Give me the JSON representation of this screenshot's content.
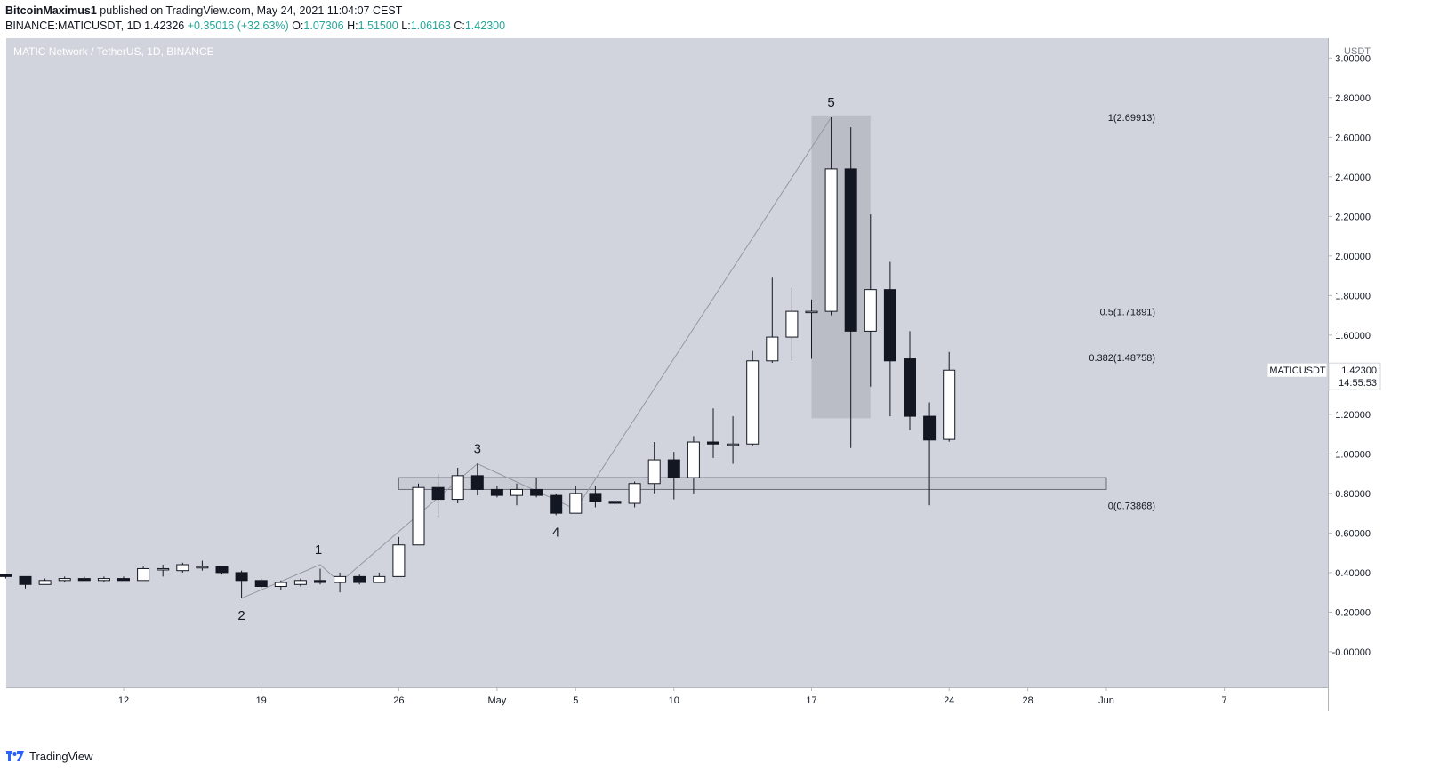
{
  "header": {
    "author": "BitcoinMaximus1",
    "published_text": "published on TradingView.com, May 24, 2021 11:04:07 CEST",
    "symbol_line": "BINANCE:MATICUSDT, 1D",
    "last": "1.42326",
    "change": "+0.35016 (+32.63%)",
    "o_label": "O:",
    "o": "1.07306",
    "h_label": "H:",
    "h": "1.51500",
    "l_label": "L:",
    "l": "1.06163",
    "c_label": "C:",
    "c": "1.42300"
  },
  "footer": {
    "brand": "TradingView"
  },
  "colors": {
    "background": "#d1d4dc",
    "bull": "#ffffff",
    "bear": "#131722",
    "accent": "#26a69a"
  },
  "chart_data": {
    "type": "candlestick",
    "title": "MATIC Network / TetherUS, 1D, BINANCE",
    "currency": "USDT",
    "ylim": [
      -0.18,
      3.1
    ],
    "y_ticks": [
      "3.00000",
      "2.80000",
      "2.60000",
      "2.40000",
      "2.20000",
      "2.00000",
      "1.80000",
      "1.60000",
      "1.40000",
      "1.20000",
      "1.00000",
      "0.80000",
      "0.60000",
      "0.40000",
      "0.20000",
      "-0.00000"
    ],
    "y_tick_values": [
      3.0,
      2.8,
      2.6,
      2.4,
      2.2,
      2.0,
      1.8,
      1.6,
      1.4,
      1.2,
      1.0,
      0.8,
      0.6,
      0.4,
      0.2,
      0.0
    ],
    "x_ticks": [
      {
        "label": "12",
        "date": "2021-04-12"
      },
      {
        "label": "19",
        "date": "2021-04-19"
      },
      {
        "label": "26",
        "date": "2021-04-26"
      },
      {
        "label": "May",
        "date": "2021-05-01"
      },
      {
        "label": "5",
        "date": "2021-05-05"
      },
      {
        "label": "10",
        "date": "2021-05-10"
      },
      {
        "label": "17",
        "date": "2021-05-17"
      },
      {
        "label": "24",
        "date": "2021-05-24"
      },
      {
        "label": "28",
        "date": "2021-05-28"
      },
      {
        "label": "Jun",
        "date": "2021-06-01"
      },
      {
        "label": "7",
        "date": "2021-06-07"
      }
    ],
    "candles": [
      {
        "date": "2021-04-06",
        "o": 0.39,
        "h": 0.39,
        "l": 0.37,
        "c": 0.38
      },
      {
        "date": "2021-04-07",
        "o": 0.38,
        "h": 0.38,
        "l": 0.32,
        "c": 0.34
      },
      {
        "date": "2021-04-08",
        "o": 0.34,
        "h": 0.37,
        "l": 0.34,
        "c": 0.36
      },
      {
        "date": "2021-04-09",
        "o": 0.36,
        "h": 0.38,
        "l": 0.35,
        "c": 0.37
      },
      {
        "date": "2021-04-10",
        "o": 0.37,
        "h": 0.38,
        "l": 0.36,
        "c": 0.36
      },
      {
        "date": "2021-04-11",
        "o": 0.36,
        "h": 0.38,
        "l": 0.35,
        "c": 0.37
      },
      {
        "date": "2021-04-12",
        "o": 0.37,
        "h": 0.38,
        "l": 0.36,
        "c": 0.36
      },
      {
        "date": "2021-04-13",
        "o": 0.36,
        "h": 0.43,
        "l": 0.36,
        "c": 0.42
      },
      {
        "date": "2021-04-14",
        "o": 0.42,
        "h": 0.44,
        "l": 0.38,
        "c": 0.42
      },
      {
        "date": "2021-04-15",
        "o": 0.41,
        "h": 0.45,
        "l": 0.4,
        "c": 0.44
      },
      {
        "date": "2021-04-16",
        "o": 0.43,
        "h": 0.46,
        "l": 0.41,
        "c": 0.43
      },
      {
        "date": "2021-04-17",
        "o": 0.43,
        "h": 0.43,
        "l": 0.39,
        "c": 0.4
      },
      {
        "date": "2021-04-18",
        "o": 0.4,
        "h": 0.41,
        "l": 0.27,
        "c": 0.36
      },
      {
        "date": "2021-04-19",
        "o": 0.36,
        "h": 0.37,
        "l": 0.32,
        "c": 0.33
      },
      {
        "date": "2021-04-20",
        "o": 0.33,
        "h": 0.36,
        "l": 0.31,
        "c": 0.35
      },
      {
        "date": "2021-04-21",
        "o": 0.34,
        "h": 0.37,
        "l": 0.33,
        "c": 0.36
      },
      {
        "date": "2021-04-22",
        "o": 0.36,
        "h": 0.42,
        "l": 0.34,
        "c": 0.35
      },
      {
        "date": "2021-04-23",
        "o": 0.35,
        "h": 0.4,
        "l": 0.3,
        "c": 0.38
      },
      {
        "date": "2021-04-24",
        "o": 0.38,
        "h": 0.39,
        "l": 0.34,
        "c": 0.35
      },
      {
        "date": "2021-04-25",
        "o": 0.35,
        "h": 0.4,
        "l": 0.35,
        "c": 0.38
      },
      {
        "date": "2021-04-26",
        "o": 0.38,
        "h": 0.58,
        "l": 0.38,
        "c": 0.54
      },
      {
        "date": "2021-04-27",
        "o": 0.54,
        "h": 0.85,
        "l": 0.54,
        "c": 0.83
      },
      {
        "date": "2021-04-28",
        "o": 0.83,
        "h": 0.9,
        "l": 0.68,
        "c": 0.77
      },
      {
        "date": "2021-04-29",
        "o": 0.77,
        "h": 0.93,
        "l": 0.75,
        "c": 0.89
      },
      {
        "date": "2021-04-30",
        "o": 0.89,
        "h": 0.95,
        "l": 0.79,
        "c": 0.82
      },
      {
        "date": "2021-05-01",
        "o": 0.82,
        "h": 0.84,
        "l": 0.78,
        "c": 0.79
      },
      {
        "date": "2021-05-02",
        "o": 0.79,
        "h": 0.85,
        "l": 0.74,
        "c": 0.82
      },
      {
        "date": "2021-05-03",
        "o": 0.82,
        "h": 0.88,
        "l": 0.78,
        "c": 0.79
      },
      {
        "date": "2021-05-04",
        "o": 0.79,
        "h": 0.8,
        "l": 0.69,
        "c": 0.7
      },
      {
        "date": "2021-05-05",
        "o": 0.7,
        "h": 0.84,
        "l": 0.7,
        "c": 0.8
      },
      {
        "date": "2021-05-06",
        "o": 0.8,
        "h": 0.84,
        "l": 0.73,
        "c": 0.76
      },
      {
        "date": "2021-05-07",
        "o": 0.76,
        "h": 0.77,
        "l": 0.73,
        "c": 0.75
      },
      {
        "date": "2021-05-08",
        "o": 0.75,
        "h": 0.86,
        "l": 0.73,
        "c": 0.85
      },
      {
        "date": "2021-05-09",
        "o": 0.85,
        "h": 1.06,
        "l": 0.8,
        "c": 0.97
      },
      {
        "date": "2021-05-10",
        "o": 0.97,
        "h": 1.01,
        "l": 0.77,
        "c": 0.88
      },
      {
        "date": "2021-05-11",
        "o": 0.88,
        "h": 1.09,
        "l": 0.8,
        "c": 1.06
      },
      {
        "date": "2021-05-12",
        "o": 1.06,
        "h": 1.23,
        "l": 0.98,
        "c": 1.05
      },
      {
        "date": "2021-05-13",
        "o": 1.05,
        "h": 1.19,
        "l": 0.95,
        "c": 1.05
      },
      {
        "date": "2021-05-14",
        "o": 1.05,
        "h": 1.52,
        "l": 1.04,
        "c": 1.47
      },
      {
        "date": "2021-05-15",
        "o": 1.47,
        "h": 1.89,
        "l": 1.46,
        "c": 1.59
      },
      {
        "date": "2021-05-16",
        "o": 1.59,
        "h": 1.84,
        "l": 1.47,
        "c": 1.72
      },
      {
        "date": "2021-05-17",
        "o": 1.72,
        "h": 1.78,
        "l": 1.48,
        "c": 1.72
      },
      {
        "date": "2021-05-18",
        "o": 1.72,
        "h": 2.7,
        "l": 1.7,
        "c": 2.44
      },
      {
        "date": "2021-05-19",
        "o": 2.44,
        "h": 2.65,
        "l": 1.03,
        "c": 1.62
      },
      {
        "date": "2021-05-20",
        "o": 1.62,
        "h": 2.21,
        "l": 1.34,
        "c": 1.83
      },
      {
        "date": "2021-05-21",
        "o": 1.83,
        "h": 1.97,
        "l": 1.19,
        "c": 1.47
      },
      {
        "date": "2021-05-22",
        "o": 1.48,
        "h": 1.62,
        "l": 1.12,
        "c": 1.19
      },
      {
        "date": "2021-05-23",
        "o": 1.19,
        "h": 1.26,
        "l": 0.74,
        "c": 1.07
      },
      {
        "date": "2021-05-24",
        "o": 1.07306,
        "h": 1.515,
        "l": 1.06163,
        "c": 1.423
      }
    ],
    "wave_labels": [
      {
        "label": "1",
        "date": "2021-04-22",
        "y": 0.44
      },
      {
        "label": "2",
        "date": "2021-04-18",
        "y": 0.27
      },
      {
        "label": "3",
        "date": "2021-04-30",
        "y": 0.95
      },
      {
        "label": "4",
        "date": "2021-05-04",
        "y": 0.69
      },
      {
        "label": "5",
        "date": "2021-05-18",
        "y": 2.7
      }
    ],
    "wave_path": [
      {
        "date": "2021-04-18",
        "y": 0.27
      },
      {
        "date": "2021-04-22",
        "y": 0.44
      },
      {
        "date": "2021-04-23",
        "y": 0.35
      },
      {
        "date": "2021-04-30",
        "y": 0.95
      },
      {
        "date": "2021-05-05",
        "y": 0.72
      },
      {
        "date": "2021-05-18",
        "y": 2.7
      }
    ],
    "fib_levels": [
      {
        "label": "1(2.69913)",
        "value": 2.69913
      },
      {
        "label": "0.5(1.71891)",
        "value": 1.71891
      },
      {
        "label": "0.382(1.48758)",
        "value": 1.48758
      },
      {
        "label": "0(0.73868)",
        "value": 0.73868
      }
    ],
    "zones": [
      {
        "kind": "support",
        "from_date": "2021-04-26",
        "to_date": "2021-06-01",
        "y_low": 0.82,
        "y_high": 0.88
      },
      {
        "kind": "highlight",
        "from_date": "2021-05-17",
        "to_date": "2021-05-20",
        "y_low": 1.18,
        "y_high": 2.71
      }
    ],
    "price_label": {
      "symbol": "MATICUSDT",
      "price": "1.42300",
      "countdown": "14:55:53",
      "value": 1.423
    }
  }
}
